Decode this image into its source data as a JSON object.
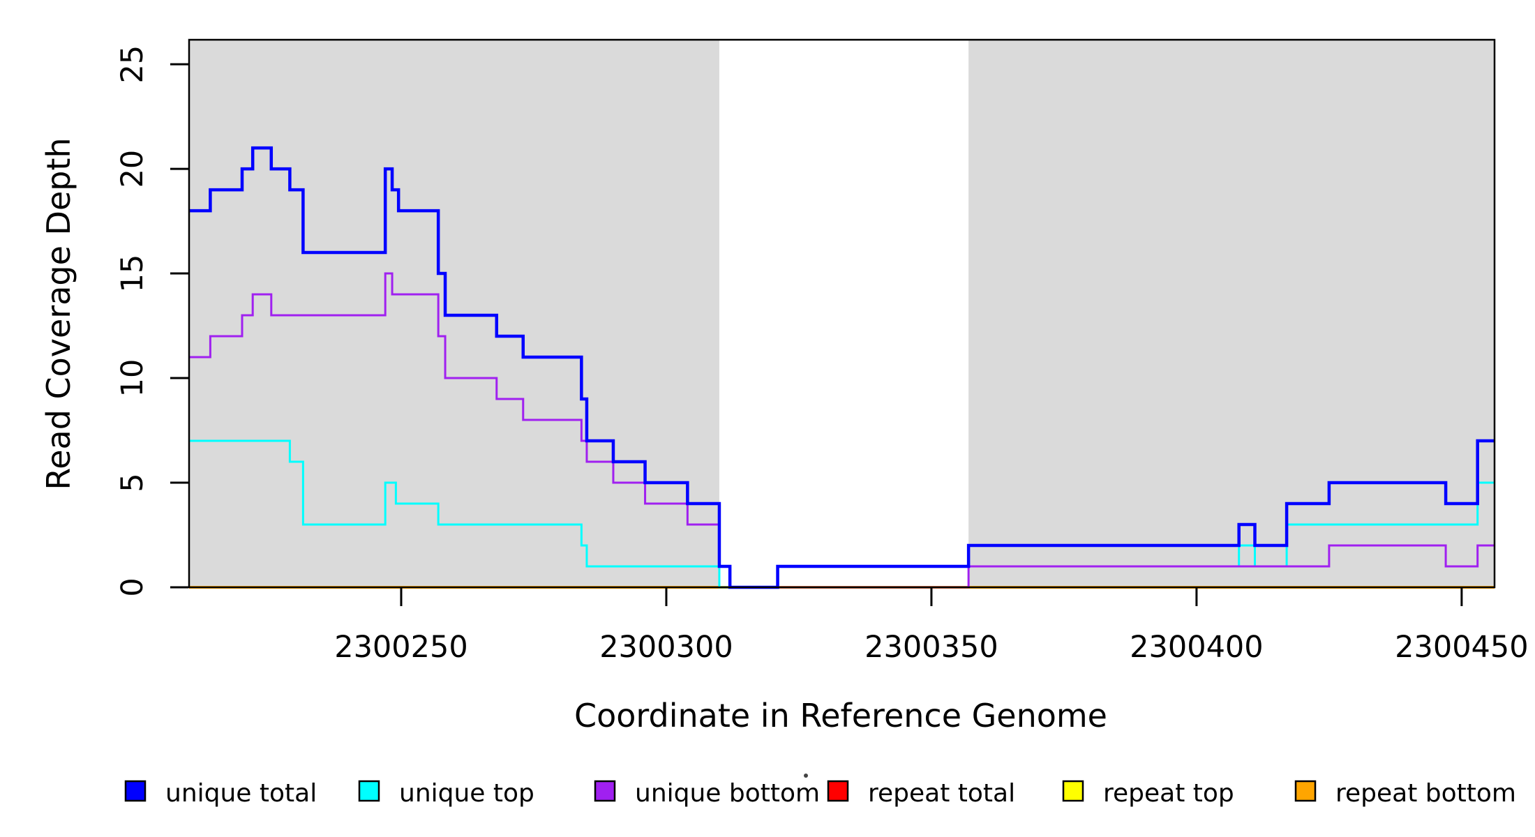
{
  "chart_data": {
    "type": "line",
    "subtype": "step-coverage-plot",
    "title": "",
    "xlabel": "Coordinate in Reference Genome",
    "ylabel": "Read Coverage Depth",
    "xlim": [
      2300210,
      2300456.2
    ],
    "ylim": [
      0,
      26.17
    ],
    "x_ticks": [
      2300250,
      2300300,
      2300350,
      2300400,
      2300450
    ],
    "y_ticks": [
      0,
      5,
      10,
      15,
      20,
      25
    ],
    "grid": false,
    "legend_position": "bottom",
    "shade_color": "#DADADA",
    "shaded_regions": [
      {
        "x0": 2300210,
        "x1": 2300310,
        "note": "unique-mapping region left"
      },
      {
        "x0": 2300357,
        "x1": 2300456.2,
        "note": "unique-mapping region right"
      }
    ],
    "draw_order": [
      3,
      4,
      5,
      1,
      2,
      0
    ],
    "series": [
      {
        "name": "unique total",
        "color": "#0000FF",
        "lwd": 4.5,
        "steps": [
          [
            2300210,
            18
          ],
          [
            2300214,
            19
          ],
          [
            2300220,
            20
          ],
          [
            2300222,
            21
          ],
          [
            2300225.5,
            20
          ],
          [
            2300229,
            19
          ],
          [
            2300231.5,
            16
          ],
          [
            2300247,
            20
          ],
          [
            2300248.3,
            19
          ],
          [
            2300249.5,
            18
          ],
          [
            2300257,
            15
          ],
          [
            2300258.3,
            13
          ],
          [
            2300268,
            12
          ],
          [
            2300273,
            11
          ],
          [
            2300284,
            9
          ],
          [
            2300285,
            7
          ],
          [
            2300290,
            6
          ],
          [
            2300296,
            5
          ],
          [
            2300304,
            4
          ],
          [
            2300310,
            1
          ],
          [
            2300312,
            0
          ],
          [
            2300321,
            1
          ],
          [
            2300357,
            2
          ],
          [
            2300408,
            3
          ],
          [
            2300411,
            2
          ],
          [
            2300417,
            4
          ],
          [
            2300425,
            5
          ],
          [
            2300447,
            4
          ],
          [
            2300453,
            7
          ]
        ]
      },
      {
        "name": "unique top",
        "color": "#00FFFF",
        "lwd": 3,
        "steps": [
          [
            2300210,
            7
          ],
          [
            2300229,
            6
          ],
          [
            2300231.5,
            3
          ],
          [
            2300247,
            5
          ],
          [
            2300249,
            4
          ],
          [
            2300257,
            3
          ],
          [
            2300284,
            2
          ],
          [
            2300285,
            1
          ],
          [
            2300310,
            0
          ],
          [
            2300321,
            1
          ],
          [
            2300408,
            2
          ],
          [
            2300411,
            1
          ],
          [
            2300417,
            3
          ],
          [
            2300453,
            5
          ]
        ]
      },
      {
        "name": "unique bottom",
        "color": "#A020F0",
        "lwd": 3,
        "steps": [
          [
            2300210,
            11
          ],
          [
            2300214,
            12
          ],
          [
            2300220,
            13
          ],
          [
            2300222,
            14
          ],
          [
            2300225.5,
            13
          ],
          [
            2300247,
            15
          ],
          [
            2300248.3,
            14
          ],
          [
            2300257,
            12
          ],
          [
            2300258.3,
            10
          ],
          [
            2300268,
            9
          ],
          [
            2300273,
            8
          ],
          [
            2300284,
            7
          ],
          [
            2300285,
            6
          ],
          [
            2300290,
            5
          ],
          [
            2300296,
            4
          ],
          [
            2300304,
            3
          ],
          [
            2300310,
            1
          ],
          [
            2300312,
            0
          ],
          [
            2300357,
            1
          ],
          [
            2300425,
            2
          ],
          [
            2300447,
            1
          ],
          [
            2300453,
            2
          ]
        ]
      },
      {
        "name": "repeat total",
        "color": "#FF0000",
        "lwd": 3,
        "steps": [
          [
            2300210,
            0
          ]
        ]
      },
      {
        "name": "repeat top",
        "color": "#FFFF00",
        "lwd": 3,
        "steps": [
          [
            2300210,
            0
          ]
        ]
      },
      {
        "name": "repeat bottom",
        "color": "#FFA500",
        "lwd": 4,
        "steps": [
          [
            2300210,
            0
          ]
        ]
      }
    ]
  },
  "legend": {
    "swatch_border_color": "#000000",
    "items": [
      {
        "label": "unique total",
        "color": "#0000FF"
      },
      {
        "label": "unique top",
        "color": "#00FFFF"
      },
      {
        "label": "unique bottom",
        "color": "#A020F0"
      },
      {
        "label": "repeat total",
        "color": "#FF0000"
      },
      {
        "label": "repeat top",
        "color": "#FFFF00"
      },
      {
        "label": "repeat bottom",
        "color": "#FFA500"
      }
    ]
  }
}
